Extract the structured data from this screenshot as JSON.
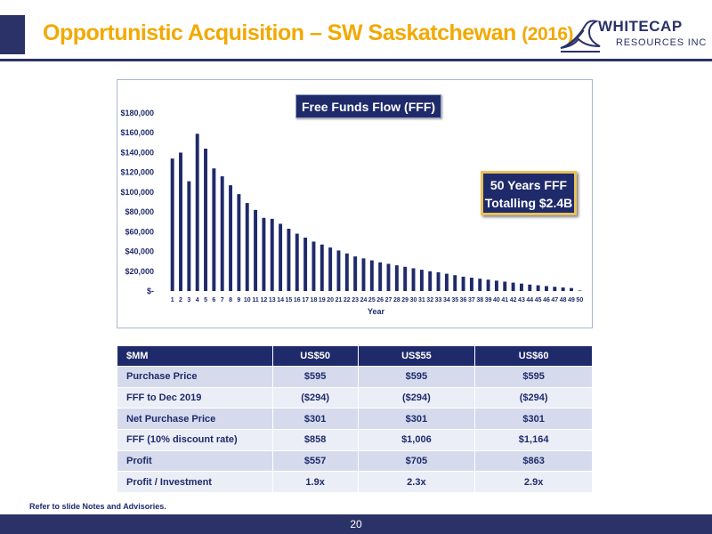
{
  "header": {
    "title_main": "Opportunistic Acquisition – SW Saskatchewan",
    "title_year": "(2016)",
    "logo_line1": "WHITECAP",
    "logo_line2": "RESOURCES INC"
  },
  "chart_data": {
    "type": "bar",
    "title": "Free Funds Flow (FFF)",
    "xlabel": "Year",
    "ylabel": "",
    "ylim": [
      0,
      180000
    ],
    "y_ticks": [
      "$-",
      "$20,000",
      "$40,000",
      "$60,000",
      "$80,000",
      "$100,000",
      "$120,000",
      "$140,000",
      "$160,000",
      "$180,000"
    ],
    "categories": [
      "1",
      "2",
      "3",
      "4",
      "5",
      "6",
      "7",
      "8",
      "9",
      "10",
      "11",
      "12",
      "13",
      "14",
      "15",
      "16",
      "17",
      "18",
      "19",
      "20",
      "21",
      "22",
      "23",
      "24",
      "25",
      "26",
      "27",
      "28",
      "29",
      "30",
      "31",
      "32",
      "33",
      "34",
      "35",
      "36",
      "37",
      "38",
      "39",
      "40",
      "41",
      "42",
      "43",
      "44",
      "45",
      "46",
      "47",
      "48",
      "49",
      "50"
    ],
    "values": [
      134000,
      140000,
      111000,
      159000,
      144000,
      124000,
      116000,
      107000,
      98000,
      89000,
      82000,
      74000,
      73000,
      68000,
      63000,
      58000,
      54000,
      50000,
      47000,
      44000,
      41000,
      38000,
      35000,
      33000,
      31000,
      29000,
      27500,
      26000,
      24500,
      23000,
      21500,
      20000,
      19000,
      17500,
      16000,
      14500,
      13500,
      12500,
      11500,
      10500,
      9500,
      8500,
      7500,
      6500,
      5800,
      5000,
      4300,
      3600,
      3000,
      500
    ],
    "grid": false,
    "legend": "none",
    "bar_color": "#1f2a6b",
    "callout_line1": "50 Years FFF",
    "callout_line2": "Totalling $2.4B"
  },
  "table": {
    "headers": [
      "$MM",
      "US$50",
      "US$55",
      "US$60"
    ],
    "rows": [
      [
        "Purchase Price",
        "$595",
        "$595",
        "$595"
      ],
      [
        "FFF to Dec 2019",
        "($294)",
        "($294)",
        "($294)"
      ],
      [
        "Net Purchase Price",
        "$301",
        "$301",
        "$301"
      ],
      [
        "FFF (10% discount rate)",
        "$858",
        "$1,006",
        "$1,164"
      ],
      [
        "Profit",
        "$557",
        "$705",
        "$863"
      ],
      [
        "Profit / Investment",
        "1.9x",
        "2.3x",
        "2.9x"
      ]
    ]
  },
  "footnote": "Refer to slide Notes and Advisories.",
  "page_number": "20",
  "colors": {
    "navy": "#1f2a6b",
    "accent": "#f2a900",
    "callout_border": "#e9c15a"
  }
}
